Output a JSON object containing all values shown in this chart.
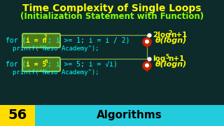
{
  "bg_color": "#0d2b2b",
  "title1": "Time Complexity of Single Loops",
  "title2": "(Initialization Statement with Function)",
  "title1_color": "#ffff00",
  "title2_color": "#88ff00",
  "code_color": "#00ffff",
  "highlight_box_color": "#4a7a1a",
  "highlight_box_edge": "#88cc44",
  "highlight_text_color": "#ffff00",
  "annotation_color": "#ffff00",
  "line_color": "#88aa44",
  "pin_color": "#cc2200",
  "theta_color": "#ffff00",
  "bottom_number": "56",
  "bottom_number_bg": "#ffdd00",
  "bottom_label": "Algorithms",
  "bottom_label_bg": "#22ccdd",
  "loop1_highlight": "i = n",
  "loop1_sup": "2",
  "loop1_rest": "; i >= 1; i = i / 2)",
  "loop1_print": "printf(\"Neso Academy\");",
  "loop2_highlight": "i = 5",
  "loop2_sup": "n",
  "loop2_rest": "; i >= 5; i = √i)",
  "loop2_print": "printf(\"Neso Academy\");",
  "ann1_bullet": "2log",
  "ann1_sub": "2",
  "ann1_tail": "n+1",
  "ann2_bullet": "log",
  "ann2_sub": "5",
  "ann2_tail": "n+1",
  "theta1": "θ(logn)",
  "theta2": "θ(logn)"
}
